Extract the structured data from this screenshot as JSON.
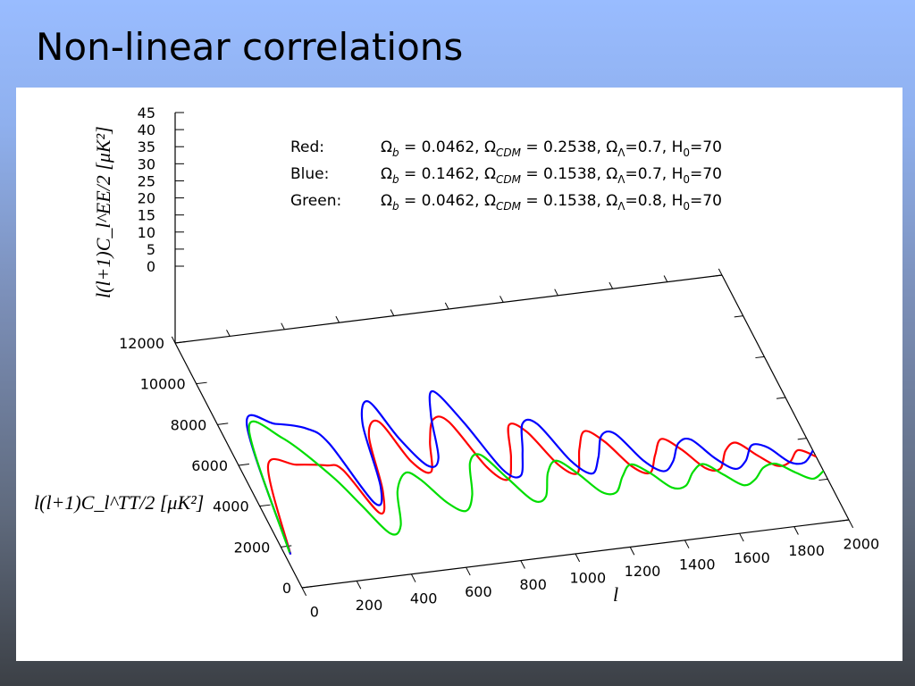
{
  "slide": {
    "title": "Non-linear correlations"
  },
  "legend": [
    {
      "label": "Red:",
      "ob": "0.0462",
      "ocdm": "0.2538",
      "olambda": "0.7",
      "h0": "70",
      "color": "#ff0000"
    },
    {
      "label": "Blue:",
      "ob": "0.1462",
      "ocdm": "0.1538",
      "olambda": "0.7",
      "h0": "70",
      "color": "#0000ff"
    },
    {
      "label": "Green:",
      "ob": "0.0462",
      "ocdm": "0.1538",
      "olambda": "0.8",
      "h0": "70",
      "color": "#00dd00"
    }
  ],
  "chart_data": {
    "type": "line",
    "projection": "3d",
    "xlabel": "l",
    "ylabel": "l(l+1)C_l^TT/2 [μK²]",
    "zlabel": "l(l+1)C_l^EE/2 [μK²]",
    "xlim": [
      0,
      2000
    ],
    "ylim": [
      0,
      12000
    ],
    "zlim": [
      0,
      45
    ],
    "xticks": [
      0,
      200,
      400,
      600,
      800,
      1000,
      1200,
      1400,
      1600,
      1800,
      2000
    ],
    "yticks": [
      0,
      2000,
      4000,
      6000,
      8000,
      10000,
      12000
    ],
    "zticks": [
      0,
      5,
      10,
      15,
      20,
      25,
      30,
      35,
      40,
      45
    ],
    "series": [
      {
        "name": "Red",
        "color": "#ff0000",
        "x": [
          20,
          100,
          200,
          300,
          350,
          400,
          450,
          500,
          560,
          600,
          650,
          700,
          750,
          800,
          850,
          900,
          950,
          1000,
          1050,
          1100,
          1150,
          1200,
          1250,
          1300,
          1350,
          1400,
          1450,
          1500,
          1550,
          1600,
          1650,
          1700,
          1750,
          1800,
          1850,
          1900,
          1950,
          2000
        ],
        "y": [
          1600,
          5800,
          5700,
          5500,
          5200,
          3000,
          4000,
          6600,
          7200,
          5200,
          4600,
          6000,
          7000,
          6800,
          4500,
          3800,
          4800,
          6300,
          5900,
          4200,
          3700,
          4800,
          5600,
          5000,
          3700,
          3300,
          4100,
          4800,
          4200,
          3200,
          3100,
          3900,
          4200,
          3500,
          2900,
          3000,
          3500,
          3100
        ]
      },
      {
        "name": "Blue",
        "color": "#0000ff",
        "x": [
          20,
          100,
          200,
          300,
          350,
          400,
          450,
          500,
          560,
          600,
          650,
          700,
          750,
          800,
          850,
          900,
          950,
          1000,
          1050,
          1100,
          1150,
          1200,
          1250,
          1300,
          1350,
          1400,
          1450,
          1500,
          1550,
          1600,
          1650,
          1700,
          1750,
          1800,
          1850,
          1900,
          1950,
          2000
        ],
        "y": [
          1600,
          7800,
          7700,
          7300,
          6500,
          3500,
          4200,
          7200,
          8200,
          6300,
          4900,
          5200,
          7200,
          8300,
          6700,
          4300,
          3900,
          5000,
          6300,
          6200,
          4300,
          3600,
          4300,
          5300,
          5300,
          3900,
          3300,
          3700,
          4500,
          4600,
          3600,
          3000,
          3300,
          4000,
          3800,
          3000,
          2900,
          3400
        ]
      },
      {
        "name": "Green",
        "color": "#00dd00",
        "x": [
          20,
          100,
          200,
          300,
          350,
          400,
          450,
          500,
          560,
          600,
          650,
          700,
          750,
          800,
          850,
          900,
          950,
          1000,
          1050,
          1100,
          1150,
          1200,
          1250,
          1300,
          1350,
          1400,
          1450,
          1500,
          1550,
          1600,
          1650,
          1700,
          1750,
          1800,
          1850,
          1900,
          1950,
          2000
        ],
        "y": [
          1700,
          7600,
          7000,
          5000,
          3500,
          2000,
          2300,
          3900,
          4700,
          4300,
          3100,
          2600,
          3300,
          4800,
          5100,
          3900,
          2700,
          2800,
          3900,
          4400,
          3700,
          2700,
          2600,
          3300,
          3800,
          3300,
          2500,
          2500,
          3100,
          3400,
          2800,
          2200,
          2400,
          2900,
          3000,
          2500,
          2100,
          2400
        ]
      }
    ]
  }
}
